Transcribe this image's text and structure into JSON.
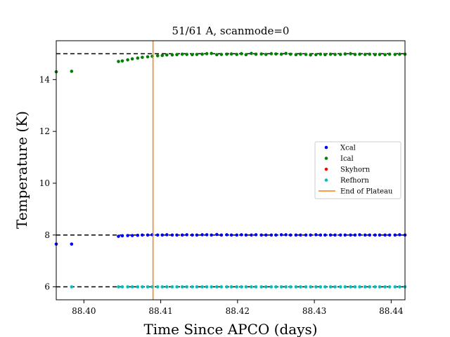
{
  "chart_data": {
    "type": "scatter",
    "title": "51/61 A, scanmode=0",
    "xlabel": "Time Since APCO (days)",
    "ylabel": "Temperature (K)",
    "xlim": [
      88.3964,
      88.4418
    ],
    "ylim": [
      5.5,
      15.5
    ],
    "xticks": [
      88.4,
      88.41,
      88.42,
      88.43,
      88.44
    ],
    "xtick_labels": [
      "88.40",
      "88.41",
      "88.42",
      "88.43",
      "88.44"
    ],
    "yticks": [
      6,
      8,
      10,
      12,
      14
    ],
    "ytick_labels": [
      "6",
      "8",
      "10",
      "12",
      "14"
    ],
    "hlines": [
      15.0,
      8.0,
      6.0
    ],
    "vline": 88.409,
    "legend_position": "center-right",
    "series": [
      {
        "name": "Xcal",
        "color": "#0000ff",
        "x": [
          88.3964,
          88.3984,
          88.4045,
          88.405,
          88.4057,
          88.4063,
          88.407,
          88.4076,
          88.4083,
          88.4089,
          88.4096,
          88.4102,
          88.4108,
          88.4115,
          88.4121,
          88.4128,
          88.4134,
          88.4141,
          88.4147,
          88.4154,
          88.416,
          88.4166,
          88.4173,
          88.4179,
          88.4186,
          88.4192,
          88.4199,
          88.4205,
          88.4211,
          88.4218,
          88.4224,
          88.4231,
          88.4237,
          88.4244,
          88.425,
          88.4257,
          88.4263,
          88.4269,
          88.4276,
          88.4282,
          88.4289,
          88.4295,
          88.4302,
          88.4308,
          88.4314,
          88.4321,
          88.4327,
          88.4334,
          88.434,
          88.4347,
          88.4353,
          88.4359,
          88.4366,
          88.4372,
          88.4379,
          88.4385,
          88.4392,
          88.4398,
          88.4405,
          88.4411,
          88.4418
        ],
        "y": [
          7.65,
          7.65,
          7.95,
          7.97,
          7.98,
          7.98,
          7.99,
          8.0,
          8.0,
          8.01,
          8.0,
          8.0,
          8.01,
          8.0,
          8.0,
          8.0,
          8.01,
          8.0,
          8.0,
          8.01,
          8.01,
          8.0,
          8.02,
          8.0,
          8.01,
          8.0,
          8.0,
          8.01,
          8.0,
          8.0,
          8.01,
          8.0,
          8.0,
          8.0,
          8.0,
          8.01,
          8.01,
          8.0,
          8.0,
          8.0,
          8.0,
          8.0,
          8.01,
          8.0,
          8.0,
          8.0,
          8.0,
          8.0,
          8.0,
          8.0,
          8.0,
          8.01,
          8.0,
          8.0,
          8.0,
          8.0,
          8.0,
          8.0,
          8.0,
          8.01,
          8.0
        ]
      },
      {
        "name": "Ical",
        "color": "#008000",
        "x": [
          88.3964,
          88.3984,
          88.4045,
          88.405,
          88.4057,
          88.4063,
          88.407,
          88.4076,
          88.4083,
          88.4089,
          88.4096,
          88.4102,
          88.4108,
          88.4115,
          88.4121,
          88.4128,
          88.4134,
          88.4141,
          88.4147,
          88.4154,
          88.416,
          88.4166,
          88.4173,
          88.4179,
          88.4186,
          88.4192,
          88.4199,
          88.4205,
          88.4211,
          88.4218,
          88.4224,
          88.4231,
          88.4237,
          88.4244,
          88.425,
          88.4257,
          88.4263,
          88.4269,
          88.4276,
          88.4282,
          88.4289,
          88.4295,
          88.4302,
          88.4308,
          88.4314,
          88.4321,
          88.4327,
          88.4334,
          88.434,
          88.4347,
          88.4353,
          88.4359,
          88.4366,
          88.4372,
          88.4379,
          88.4385,
          88.4392,
          88.4398,
          88.4405,
          88.4411,
          88.4418
        ],
        "y": [
          14.3,
          14.32,
          14.7,
          14.72,
          14.76,
          14.8,
          14.83,
          14.86,
          14.88,
          14.9,
          14.92,
          14.93,
          14.95,
          14.95,
          14.96,
          14.98,
          14.97,
          14.96,
          14.97,
          14.98,
          15.0,
          15.01,
          14.96,
          14.97,
          14.98,
          14.99,
          14.97,
          15.0,
          14.96,
          15.01,
          14.98,
          14.99,
          14.97,
          15.0,
          14.99,
          14.98,
          15.01,
          14.98,
          14.96,
          14.98,
          14.97,
          14.95,
          14.96,
          14.98,
          14.96,
          14.98,
          14.97,
          14.97,
          14.99,
          15.0,
          14.97,
          14.98,
          14.97,
          14.98,
          14.96,
          14.97,
          14.96,
          14.98,
          14.97,
          14.98,
          14.98
        ]
      },
      {
        "name": "Skyhorn",
        "color": "#ff0000",
        "x": [],
        "y": []
      },
      {
        "name": "Refhorn",
        "color": "#00bfbf",
        "x": [
          88.3984,
          88.4045,
          88.405,
          88.4057,
          88.4063,
          88.407,
          88.4076,
          88.4083,
          88.4089,
          88.4096,
          88.4102,
          88.4108,
          88.4115,
          88.4121,
          88.4128,
          88.4134,
          88.4141,
          88.4147,
          88.4154,
          88.416,
          88.4166,
          88.4173,
          88.4179,
          88.4186,
          88.4192,
          88.4199,
          88.4205,
          88.4211,
          88.4218,
          88.4224,
          88.4231,
          88.4237,
          88.4244,
          88.425,
          88.4257,
          88.4263,
          88.4269,
          88.4276,
          88.4282,
          88.4289,
          88.4295,
          88.4302,
          88.4308,
          88.4314,
          88.4321,
          88.4327,
          88.4334,
          88.434,
          88.4347,
          88.4353,
          88.4359,
          88.4366,
          88.4372,
          88.4379,
          88.4385,
          88.4392,
          88.4398,
          88.4405,
          88.4411,
          88.4418
        ],
        "y": [
          6.0,
          6.0,
          6.0,
          6.0,
          6.0,
          6.0,
          6.0,
          6.0,
          6.0,
          6.0,
          6.0,
          6.0,
          6.0,
          6.0,
          6.0,
          6.0,
          6.0,
          6.0,
          6.0,
          6.0,
          6.0,
          6.0,
          6.0,
          6.0,
          6.0,
          6.0,
          6.0,
          6.0,
          6.0,
          6.0,
          6.0,
          6.0,
          6.0,
          6.0,
          6.0,
          6.0,
          6.0,
          6.0,
          6.0,
          6.0,
          6.0,
          6.0,
          6.0,
          6.0,
          6.0,
          6.0,
          6.0,
          6.0,
          6.0,
          6.0,
          6.0,
          6.0,
          6.0,
          6.0,
          6.0,
          6.0,
          6.0,
          6.0,
          6.0,
          6.0
        ]
      }
    ],
    "legend_entries": [
      {
        "label": "Xcal",
        "kind": "marker",
        "color": "#0000ff"
      },
      {
        "label": "Ical",
        "kind": "marker",
        "color": "#008000"
      },
      {
        "label": "Skyhorn",
        "kind": "marker",
        "color": "#ff0000"
      },
      {
        "label": "Refhorn",
        "kind": "marker",
        "color": "#00bfbf"
      },
      {
        "label": "End of Plateau",
        "kind": "line",
        "color": "#ff7f0e"
      }
    ]
  }
}
